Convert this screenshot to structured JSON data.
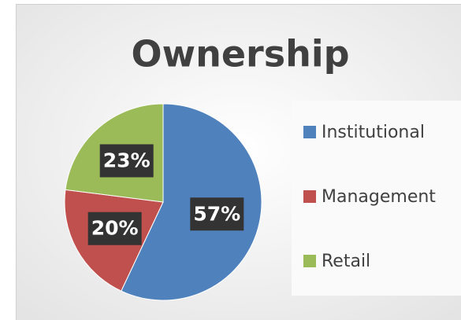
{
  "chart_data": {
    "type": "pie",
    "title": "Ownership",
    "categories": [
      "Institutional",
      "Management",
      "Retail"
    ],
    "values": [
      57,
      20,
      23
    ],
    "value_labels": [
      "57%",
      "20%",
      "23%"
    ],
    "colors": [
      "#4f81bd",
      "#c0504d",
      "#9bbb59"
    ],
    "legend": "right"
  }
}
